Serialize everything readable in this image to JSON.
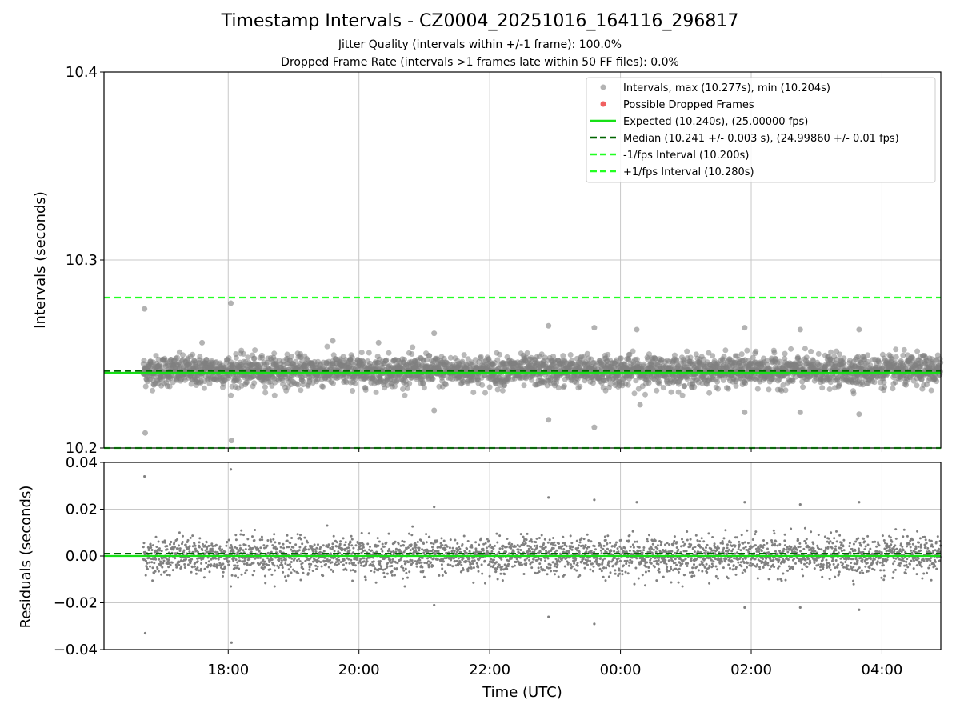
{
  "title": "Timestamp Intervals - CZ0004_20251016_164116_296817",
  "subtitle_jitter": "Jitter Quality (intervals within +/-1 frame): 100.0%",
  "subtitle_dropped": "Dropped Frame Rate (intervals >1 frames late within 50 FF files): 0.0%",
  "colors": {
    "points": "#808080",
    "dropped": "#f06060",
    "expected": "#16e016",
    "median": "#006400",
    "fps_bounds": "#22ff22",
    "grid": "#c8c8c8"
  },
  "chart_data": [
    {
      "type": "scatter",
      "panel": "top",
      "title": "",
      "xlabel": "",
      "ylabel": "Intervals (seconds)",
      "ylim": [
        10.2,
        10.4
      ],
      "yticks": [
        10.2,
        10.3,
        10.4
      ],
      "ytick_labels": [
        "10.2",
        "10.3",
        "10.4"
      ],
      "xlim_hours": [
        16.1,
        28.9
      ],
      "xticks_hours": [
        18,
        20,
        22,
        24,
        26,
        28
      ],
      "grid": true,
      "legend_position": "top-right",
      "legend": [
        "Intervals, max (10.277s), min (10.204s)",
        "Possible Dropped Frames",
        "Expected (10.240s), (25.00000 fps)",
        "Median (10.241 +/- 0.003 s), (24.99860 +/- 0.01 fps)",
        "-1/fps Interval (10.200s)",
        "+1/fps Interval (10.280s)"
      ],
      "reference_lines": {
        "expected": 10.24,
        "median": 10.241,
        "minus_1_fps": 10.2,
        "plus_1_fps": 10.28
      },
      "series_summary": {
        "name": "Intervals",
        "x_start_hours": 16.7,
        "x_end_hours": 28.95,
        "interval_seconds": 10.24,
        "center": 10.241,
        "typical_spread": 0.004,
        "max": 10.277,
        "min": 10.204
      },
      "outliers": [
        {
          "x_hours": 16.72,
          "y": 10.274
        },
        {
          "x_hours": 16.73,
          "y": 10.208
        },
        {
          "x_hours": 18.04,
          "y": 10.277
        },
        {
          "x_hours": 18.05,
          "y": 10.204
        },
        {
          "x_hours": 17.6,
          "y": 10.256
        },
        {
          "x_hours": 19.6,
          "y": 10.257
        },
        {
          "x_hours": 20.3,
          "y": 10.256
        },
        {
          "x_hours": 21.15,
          "y": 10.261
        },
        {
          "x_hours": 21.15,
          "y": 10.22
        },
        {
          "x_hours": 22.9,
          "y": 10.265
        },
        {
          "x_hours": 22.9,
          "y": 10.215
        },
        {
          "x_hours": 23.6,
          "y": 10.264
        },
        {
          "x_hours": 23.6,
          "y": 10.211
        },
        {
          "x_hours": 24.25,
          "y": 10.263
        },
        {
          "x_hours": 24.3,
          "y": 10.223
        },
        {
          "x_hours": 25.9,
          "y": 10.264
        },
        {
          "x_hours": 25.9,
          "y": 10.219
        },
        {
          "x_hours": 26.75,
          "y": 10.263
        },
        {
          "x_hours": 26.75,
          "y": 10.219
        },
        {
          "x_hours": 27.65,
          "y": 10.263
        },
        {
          "x_hours": 27.65,
          "y": 10.218
        }
      ]
    },
    {
      "type": "scatter",
      "panel": "bottom",
      "title": "",
      "xlabel": "Time (UTC)",
      "ylabel": "Residuals (seconds)",
      "ylim": [
        -0.04,
        0.04
      ],
      "yticks": [
        -0.04,
        -0.02,
        0.0,
        0.02,
        0.04
      ],
      "ytick_labels": [
        "−0.04",
        "−0.02",
        "0.00",
        "0.02",
        "0.04"
      ],
      "xlim_hours": [
        16.1,
        28.9
      ],
      "xticks_hours": [
        18,
        20,
        22,
        24,
        26,
        28
      ],
      "xtick_labels": [
        "18:00",
        "20:00",
        "22:00",
        "00:00",
        "02:00",
        "04:00"
      ],
      "grid": true,
      "reference_lines": {
        "expected": 0.0,
        "median": 0.001
      },
      "series_summary": {
        "name": "Residuals",
        "x_start_hours": 16.7,
        "x_end_hours": 28.95,
        "center": 0.0,
        "typical_spread": 0.004
      },
      "outliers": [
        {
          "x_hours": 16.72,
          "y": 0.034
        },
        {
          "x_hours": 16.73,
          "y": -0.033
        },
        {
          "x_hours": 18.04,
          "y": 0.037
        },
        {
          "x_hours": 18.05,
          "y": -0.037
        },
        {
          "x_hours": 21.15,
          "y": 0.021
        },
        {
          "x_hours": 21.15,
          "y": -0.021
        },
        {
          "x_hours": 22.9,
          "y": 0.025
        },
        {
          "x_hours": 22.9,
          "y": -0.026
        },
        {
          "x_hours": 23.6,
          "y": 0.024
        },
        {
          "x_hours": 23.6,
          "y": -0.029
        },
        {
          "x_hours": 24.25,
          "y": 0.023
        },
        {
          "x_hours": 25.9,
          "y": 0.023
        },
        {
          "x_hours": 25.9,
          "y": -0.022
        },
        {
          "x_hours": 26.75,
          "y": 0.022
        },
        {
          "x_hours": 26.75,
          "y": -0.022
        },
        {
          "x_hours": 27.65,
          "y": 0.023
        },
        {
          "x_hours": 27.65,
          "y": -0.023
        }
      ]
    }
  ]
}
